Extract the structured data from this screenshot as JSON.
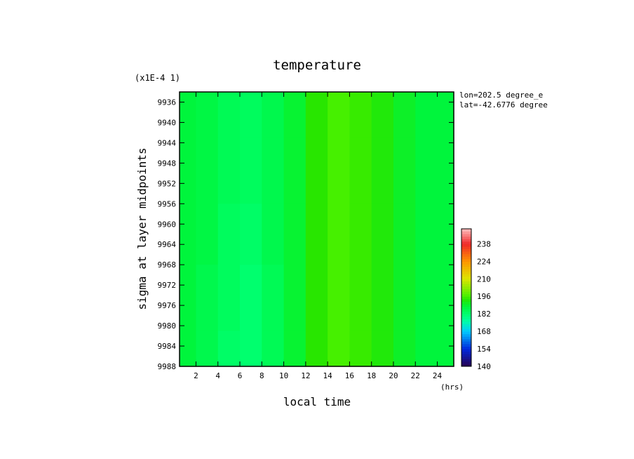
{
  "chart_data": {
    "type": "heatmap",
    "title": "temperature",
    "xlabel": "local time",
    "ylabel": "sigma at layer midpoints",
    "x_units": "(hrs)",
    "y_scale_note": "(x1E-4 1)",
    "annotation_lines": [
      "lon=202.5 degree_e",
      "lat=-42.6776 degree"
    ],
    "xlim": [
      0.5,
      25.5
    ],
    "ylim": [
      9988,
      9934
    ],
    "x_ticks": [
      2,
      4,
      6,
      8,
      10,
      12,
      14,
      16,
      18,
      20,
      22,
      24
    ],
    "y_ticks": [
      9936,
      9940,
      9944,
      9948,
      9952,
      9956,
      9960,
      9964,
      9968,
      9972,
      9976,
      9980,
      9984,
      9988
    ],
    "colorbar": {
      "min": 140,
      "max": 250,
      "tick_values": [
        140,
        154,
        168,
        182,
        196,
        210,
        224,
        238
      ]
    },
    "x": [
      1,
      3,
      5,
      7,
      9,
      11,
      13,
      15,
      17,
      19,
      21,
      23,
      25
    ],
    "y": [
      9936,
      9950,
      9962,
      9974,
      9988
    ],
    "values": [
      [
        188,
        187,
        185,
        184,
        186,
        189,
        194,
        196,
        195,
        193,
        190,
        188,
        188
      ],
      [
        188,
        187,
        185,
        184,
        186,
        189,
        194,
        196,
        195,
        193,
        190,
        188,
        188
      ],
      [
        188,
        187,
        184,
        183,
        186,
        189,
        194,
        196,
        195,
        193,
        190,
        188,
        188
      ],
      [
        188,
        186,
        184,
        182,
        185,
        189,
        194,
        196,
        195,
        193,
        190,
        188,
        188
      ],
      [
        188,
        186,
        183,
        182,
        185,
        189,
        194,
        196,
        195,
        193,
        190,
        188,
        188
      ]
    ]
  },
  "colors": {
    "background": "#ffffff",
    "frame": "#000000"
  }
}
